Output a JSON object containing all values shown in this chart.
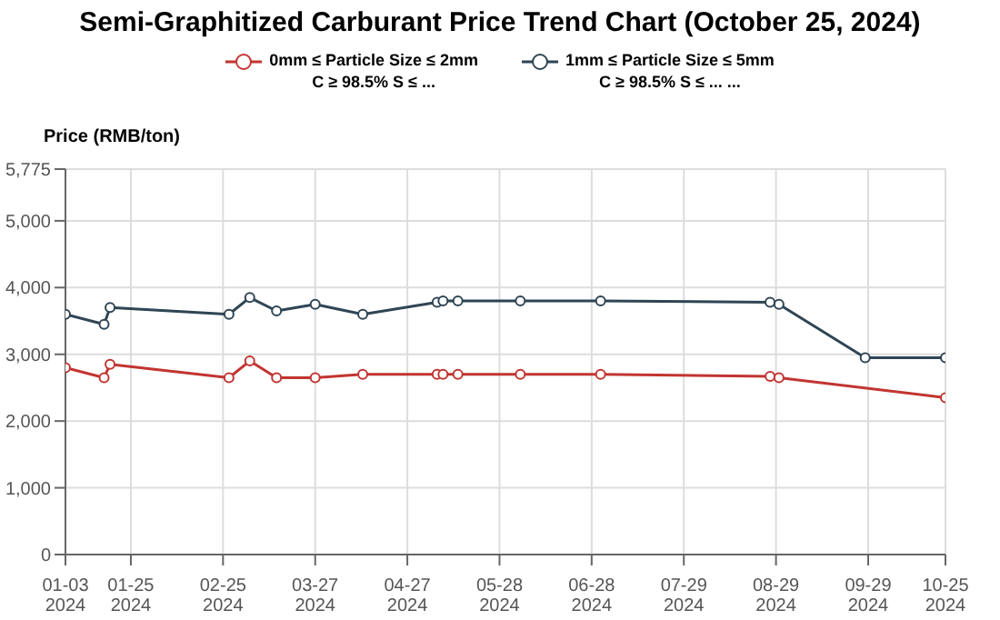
{
  "chart_data": {
    "type": "line",
    "title": "Semi-Graphitized Carburant Price Trend Chart (October 25, 2024)",
    "ylabel": "Price (RMB/ton)",
    "series": [
      {
        "name": "0mm ≤ Particle Size ≤ 2mm\nC ≥ 98.5% S ≤ ...",
        "color": "#c23531",
        "x": [
          "2024-01-03",
          "2024-01-16",
          "2024-01-18",
          "2024-02-27",
          "2024-03-05",
          "2024-03-14",
          "2024-03-27",
          "2024-04-12",
          "2024-05-07",
          "2024-05-09",
          "2024-05-14",
          "2024-06-04",
          "2024-07-01",
          "2024-08-27",
          "2024-08-30",
          "2024-10-25"
        ],
        "values": [
          2800,
          2650,
          2850,
          2650,
          2900,
          2650,
          2650,
          2700,
          2700,
          2700,
          2700,
          2700,
          2700,
          2670,
          2650,
          2350
        ]
      },
      {
        "name": "1mm ≤ Particle Size ≤ 5mm\nC ≥ 98.5% S ≤ ... ...",
        "color": "#2f4554",
        "x": [
          "2024-01-03",
          "2024-01-16",
          "2024-01-18",
          "2024-02-27",
          "2024-03-05",
          "2024-03-14",
          "2024-03-27",
          "2024-04-12",
          "2024-05-07",
          "2024-05-09",
          "2024-05-14",
          "2024-06-04",
          "2024-07-01",
          "2024-08-27",
          "2024-08-30",
          "2024-09-28",
          "2024-10-25"
        ],
        "values": [
          3600,
          3450,
          3700,
          3600,
          3850,
          3650,
          3750,
          3600,
          3780,
          3800,
          3800,
          3800,
          3800,
          3780,
          3750,
          2950,
          2950
        ]
      }
    ],
    "xlim": [
      "2024-01-03",
      "2024-10-25"
    ],
    "xticks": [
      {
        "value": "2024-01-03",
        "label": "01-03\n2024"
      },
      {
        "value": "2024-01-25",
        "label": "01-25\n2024"
      },
      {
        "value": "2024-02-25",
        "label": "02-25\n2024"
      },
      {
        "value": "2024-03-27",
        "label": "03-27\n2024"
      },
      {
        "value": "2024-04-27",
        "label": "04-27\n2024"
      },
      {
        "value": "2024-05-28",
        "label": "05-28\n2024"
      },
      {
        "value": "2024-06-28",
        "label": "06-28\n2024"
      },
      {
        "value": "2024-07-29",
        "label": "07-29\n2024"
      },
      {
        "value": "2024-08-29",
        "label": "08-29\n2024"
      },
      {
        "value": "2024-09-29",
        "label": "09-29\n2024"
      },
      {
        "value": "2024-10-25",
        "label": "10-25\n2024"
      }
    ],
    "ylim": [
      0,
      5775
    ],
    "yticks": [
      0,
      {
        "value": 1000,
        "label": "1,000"
      },
      {
        "value": 2000,
        "label": "2,000"
      },
      {
        "value": 3000,
        "label": "3,000"
      },
      {
        "value": 4000,
        "label": "4,000"
      },
      {
        "value": 5000,
        "label": "5,000"
      },
      {
        "value": 5775,
        "label": "5,775"
      }
    ],
    "grid": true,
    "legend": "top",
    "marker": "circle",
    "line_style": "solid"
  }
}
